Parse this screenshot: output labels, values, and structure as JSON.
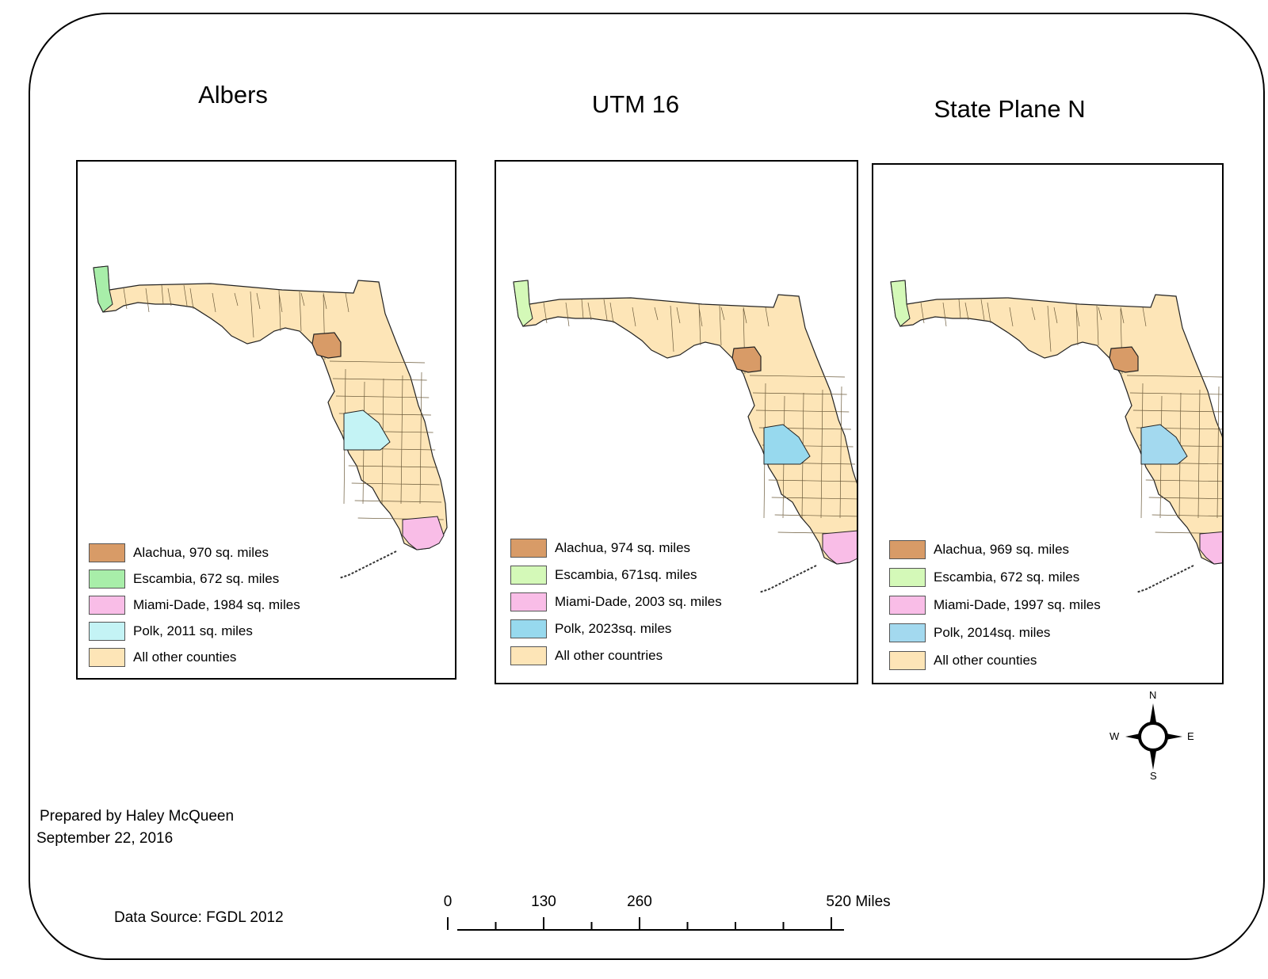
{
  "maps": [
    {
      "title": "Albers",
      "legend": [
        {
          "label": "Alachua, 970 sq. miles",
          "color": "#d89b67"
        },
        {
          "label": "Escambia, 672 sq. miles",
          "color": "#a8eea9"
        },
        {
          "label": "Miami-Dade, 1984 sq. miles",
          "color": "#f9bde7"
        },
        {
          "label": "Polk, 2011 sq. miles",
          "color": "#c4f3f5"
        },
        {
          "label": "All other counties",
          "color": "#fde5b7"
        }
      ]
    },
    {
      "title": "UTM 16",
      "legend": [
        {
          "label": "Alachua, 974 sq. miles",
          "color": "#d89b67"
        },
        {
          "label": "Escambia, 671sq. miles",
          "color": "#d4f9b8"
        },
        {
          "label": "Miami-Dade, 2003 sq. miles",
          "color": "#f9bde7"
        },
        {
          "label": "Polk, 2023sq. miles",
          "color": "#97d9ee"
        },
        {
          "label": "All other countries",
          "color": "#fde5b7"
        }
      ]
    },
    {
      "title": "State Plane N",
      "legend": [
        {
          "label": "Alachua, 969 sq. miles",
          "color": "#d89b67"
        },
        {
          "label": "Escambia, 672 sq. miles",
          "color": "#d4f9b8"
        },
        {
          "label": "Miami-Dade, 1997 sq. miles",
          "color": "#f9bde7"
        },
        {
          "label": "Polk, 2014sq. miles",
          "color": "#a3d9ef"
        },
        {
          "label": "All other counties",
          "color": "#fde5b7"
        }
      ]
    }
  ],
  "credits": {
    "prepared_by": "Prepared by Haley McQueen",
    "date": "September 22, 2016",
    "data_source": "Data Source: FGDL 2012"
  },
  "scale_bar": {
    "labels": [
      {
        "text": "0",
        "value": 0
      },
      {
        "text": "130",
        "value": 130
      },
      {
        "text": "260",
        "value": 260
      },
      {
        "text": "520 Miles",
        "value": 520
      }
    ],
    "max": 520
  },
  "north_arrow": {
    "n": "N",
    "s": "S",
    "e": "E",
    "w": "W"
  },
  "colors": {
    "county_border": "#6b5a3a",
    "coast": "#000000"
  }
}
